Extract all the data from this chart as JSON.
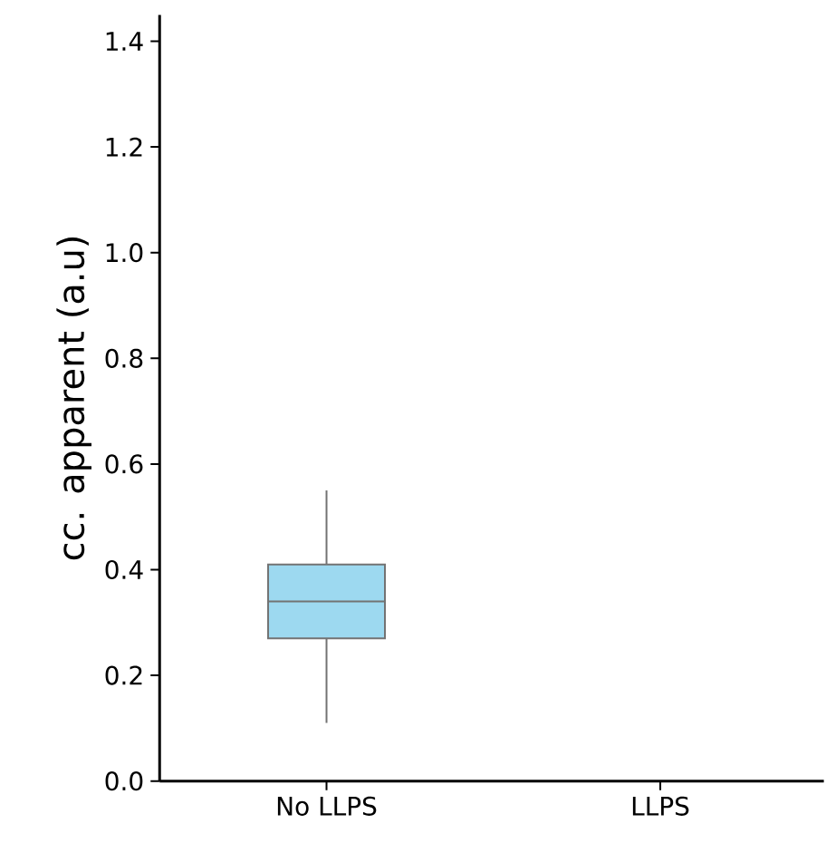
{
  "chart_data": {
    "type": "box",
    "ylabel": "cc. apparent (a.u)",
    "categories": [
      "No LLPS",
      "LLPS"
    ],
    "boxes": [
      {
        "low": 0.11,
        "q1": 0.27,
        "median": 0.34,
        "q3": 0.41,
        "high": 0.55
      },
      null
    ],
    "color": "#9dd9f0",
    "ylim": [
      0,
      1.45
    ],
    "yticks": [
      {
        "value": 0,
        "label": "0.0"
      },
      0.2,
      0.4,
      0.6,
      0.8,
      {
        "value": 1,
        "label": "1.0"
      },
      1.2,
      1.4
    ]
  }
}
